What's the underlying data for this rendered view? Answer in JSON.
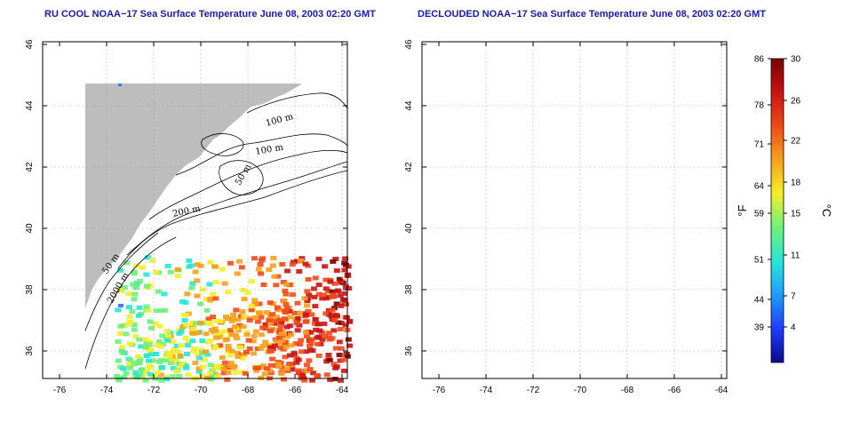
{
  "panels": [
    {
      "title": "RU COOL NOAA−17 Sea Surface Temperature June 08, 2003 02:20 GMT",
      "variant": "raw"
    },
    {
      "title": "DECLOUDED NOAA−17 Sea Surface Temperature June 08, 2003 02:20 GMT",
      "variant": "declouded"
    }
  ],
  "lat_ticks": [
    "46",
    "44",
    "42",
    "40",
    "38",
    "36"
  ],
  "lon_ticks": [
    "-76",
    "-74",
    "-72",
    "-70",
    "-68",
    "-66",
    "-64"
  ],
  "contour_labels": [
    "100 m",
    "100 m",
    "50 m",
    "200 m",
    "50 m",
    "2000 m"
  ],
  "colorbar": {
    "fahrenheit_ticks": [
      "86",
      "78",
      "71",
      "64",
      "59",
      "51",
      "44",
      "39"
    ],
    "celsius_ticks": [
      "30",
      "26",
      "22",
      "18",
      "15",
      "11",
      "7",
      "4"
    ],
    "fahrenheit_unit": "°F",
    "celsius_unit": "°C",
    "colors": [
      "#0a0a8c",
      "#1f3cff",
      "#1e9bff",
      "#27e6d6",
      "#6ef07a",
      "#f4ee2a",
      "#f5a11d",
      "#ef4a19",
      "#c81414",
      "#7a0000"
    ]
  },
  "colors": {
    "land": "#bdbdbd",
    "ocean": "#ffffff",
    "title": "#1a1aa0",
    "grid": "#9a9a9a"
  }
}
